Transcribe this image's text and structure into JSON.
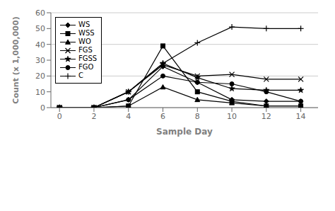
{
  "chart_data": {
    "type": "line",
    "x": [
      0,
      2,
      4,
      6,
      8,
      10,
      12,
      14
    ],
    "series": [
      {
        "name": "WS",
        "color": "#000000",
        "marker": "diamond",
        "line_style": "solid",
        "values": [
          0,
          0,
          5,
          26,
          16,
          5,
          4,
          4
        ]
      },
      {
        "name": "WSS",
        "color": "#000000",
        "marker": "square",
        "line_style": "solid",
        "values": [
          0,
          0,
          1,
          39,
          10,
          4,
          1,
          1
        ]
      },
      {
        "name": "WO",
        "color": "#000000",
        "marker": "triangle",
        "line_style": "solid",
        "values": [
          0,
          0,
          1,
          13,
          5,
          3,
          1,
          1
        ]
      },
      {
        "name": "FGS",
        "color": "#000000",
        "marker": "x",
        "line_style": "solid",
        "values": [
          0,
          0,
          10,
          27,
          20,
          21,
          18,
          18
        ]
      },
      {
        "name": "FGSS",
        "color": "#000000",
        "marker": "star",
        "line_style": "solid",
        "values": [
          0,
          0,
          10,
          28,
          19,
          12,
          11,
          11
        ]
      },
      {
        "name": "FGO",
        "color": "#000000",
        "marker": "circle",
        "line_style": "solid",
        "values": [
          0,
          0,
          5,
          20,
          16,
          15,
          10,
          4
        ]
      },
      {
        "name": "C",
        "color": "#000000",
        "marker": "plus",
        "line_style": "solid",
        "values": [
          0,
          0,
          10,
          28,
          41,
          51,
          50,
          50
        ]
      }
    ],
    "xlabel": "Sample Day",
    "ylabel": "Count (x 1,000,000)",
    "xlim": [
      -0.5,
      15
    ],
    "ylim": [
      0,
      60
    ],
    "xticks": [
      0,
      2,
      4,
      6,
      8,
      10,
      12,
      14
    ],
    "yticks": [
      0,
      10,
      20,
      30,
      40,
      50,
      60
    ],
    "grid": true,
    "legend": "upper left"
  }
}
